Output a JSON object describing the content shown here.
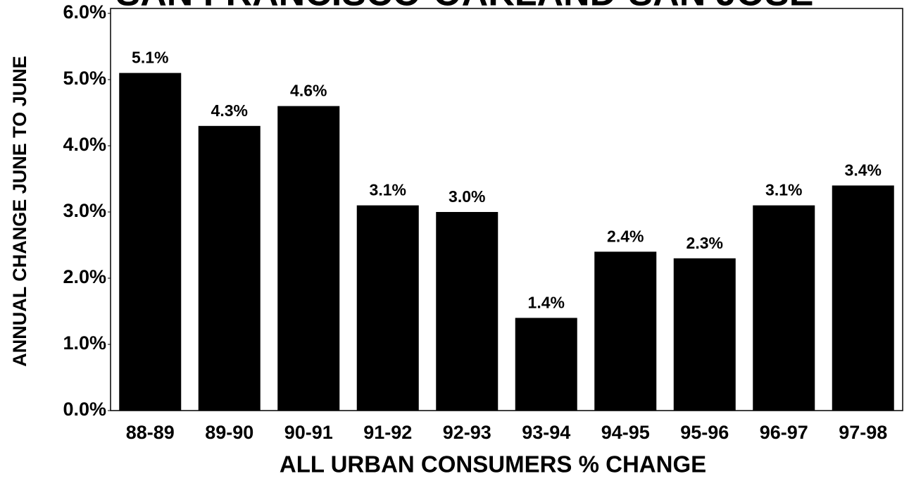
{
  "chart_data": {
    "type": "bar",
    "title": "SAN FRANCISCO-OAKLAND-SAN JOSE",
    "y_label": "ANNUAL CHANGE JUNE TO JUNE",
    "x_label": "ALL URBAN CONSUMERS % CHANGE",
    "categories": [
      "88-89",
      "89-90",
      "90-91",
      "91-92",
      "92-93",
      "93-94",
      "94-95",
      "95-96",
      "96-97",
      "97-98"
    ],
    "values": [
      5.1,
      4.3,
      4.6,
      3.1,
      3.0,
      1.4,
      2.4,
      2.3,
      3.1,
      3.4
    ],
    "value_labels": [
      "5.1%",
      "4.3%",
      "4.6%",
      "3.1%",
      "3.0%",
      "1.4%",
      "2.4%",
      "2.3%",
      "3.1%",
      "3.4%"
    ],
    "color": "#000000",
    "ylim": [
      0,
      6
    ],
    "yticks": [
      {
        "value": 0,
        "label": "0.0%"
      },
      {
        "value": 1,
        "label": "1.0%"
      },
      {
        "value": 2,
        "label": "2.0%"
      },
      {
        "value": 3,
        "label": "3.0%"
      },
      {
        "value": 4,
        "label": "4.0%"
      },
      {
        "value": 5,
        "label": "5.0%"
      },
      {
        "value": 6,
        "label": "6.0%"
      }
    ]
  }
}
